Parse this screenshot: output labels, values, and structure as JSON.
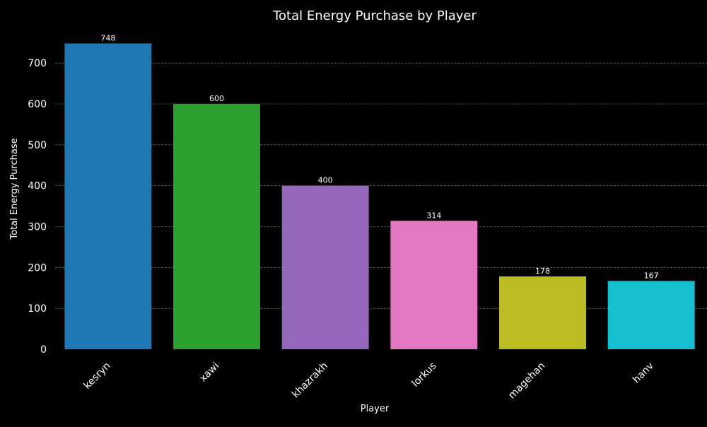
{
  "chart_data": {
    "type": "bar",
    "title": "Total Energy Purchase by Player",
    "xlabel": "Player",
    "ylabel": "Total Energy Purchase",
    "categories": [
      "kesryn",
      "xawi",
      "khazrakh",
      "lorkus",
      "magehan",
      "hanv"
    ],
    "values": [
      748,
      600,
      400,
      314,
      178,
      167
    ],
    "colors": [
      "#1f77b4",
      "#2ca02c",
      "#9467bd",
      "#e377c2",
      "#bcbd22",
      "#17becf"
    ],
    "ylim": [
      0,
      785
    ],
    "yticks": [
      0,
      100,
      200,
      300,
      400,
      500,
      600,
      700
    ],
    "grid": "y-dashed",
    "legend": "none",
    "background": "#000000"
  }
}
